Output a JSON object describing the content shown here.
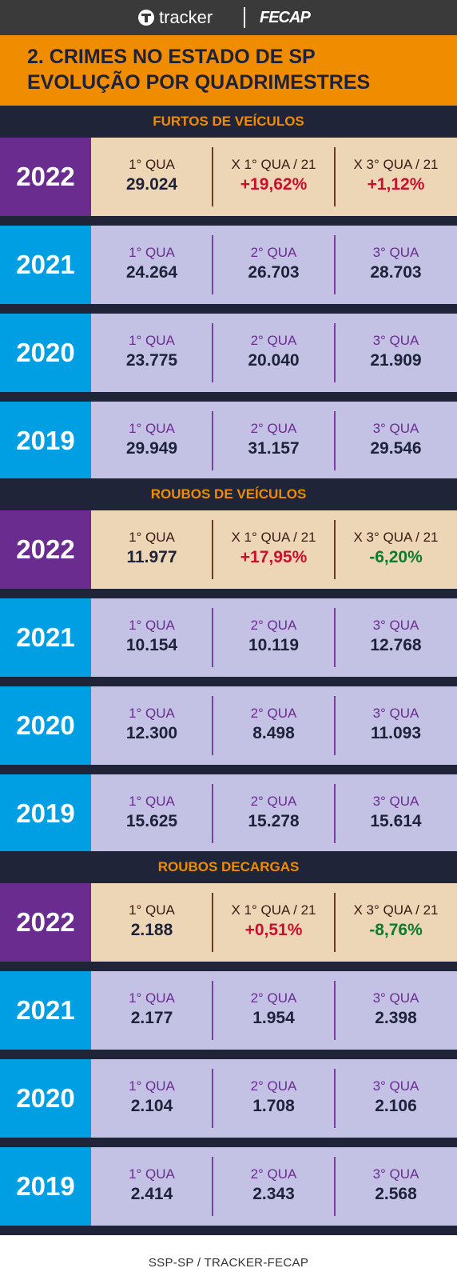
{
  "header": {
    "brand_tracker": "tracker",
    "brand_fecap": "FECAP",
    "title_line1": "2. CRIMES NO ESTADO DE SP",
    "title_line2": "EVOLUÇÃO POR QUADRIMESTRES"
  },
  "colors": {
    "orange": "#f08c00",
    "navy": "#1f2438",
    "purple": "#6a2c8f",
    "blue": "#009fe3",
    "beige": "#ecd6b6",
    "lavender": "#c3c2e5",
    "increase_red": "#c8102e",
    "decrease_green": "#0e7a2e"
  },
  "chart_data": {
    "type": "table",
    "sections": [
      {
        "title": "FURTOS DE VEÍCULOS",
        "rows": [
          {
            "year": "2022",
            "highlight": true,
            "cells": [
              {
                "label": "1° QUA",
                "value": "29.024"
              },
              {
                "label": "X 1° QUA / 21",
                "value": "+19,62%"
              },
              {
                "label": "X 3° QUA / 21",
                "value": "+1,12%"
              }
            ]
          },
          {
            "year": "2021",
            "cells": [
              {
                "label": "1° QUA",
                "value": "24.264"
              },
              {
                "label": "2° QUA",
                "value": "26.703"
              },
              {
                "label": "3° QUA",
                "value": "28.703"
              }
            ]
          },
          {
            "year": "2020",
            "cells": [
              {
                "label": "1° QUA",
                "value": "23.775"
              },
              {
                "label": "2° QUA",
                "value": "20.040"
              },
              {
                "label": "3° QUA",
                "value": "21.909"
              }
            ]
          },
          {
            "year": "2019",
            "cells": [
              {
                "label": "1° QUA",
                "value": "29.949"
              },
              {
                "label": "2° QUA",
                "value": "31.157"
              },
              {
                "label": "3° QUA",
                "value": "29.546"
              }
            ]
          }
        ]
      },
      {
        "title": "ROUBOS DE VEÍCULOS",
        "rows": [
          {
            "year": "2022",
            "highlight": true,
            "cells": [
              {
                "label": "1° QUA",
                "value": "11.977"
              },
              {
                "label": "X 1° QUA / 21",
                "value": "+17,95%"
              },
              {
                "label": "X 3° QUA / 21",
                "value": "-6,20%"
              }
            ]
          },
          {
            "year": "2021",
            "cells": [
              {
                "label": "1° QUA",
                "value": "10.154"
              },
              {
                "label": "2° QUA",
                "value": "10.119"
              },
              {
                "label": "3° QUA",
                "value": "12.768"
              }
            ]
          },
          {
            "year": "2020",
            "cells": [
              {
                "label": "1° QUA",
                "value": "12.300"
              },
              {
                "label": "2° QUA",
                "value": "8.498"
              },
              {
                "label": "3° QUA",
                "value": "11.093"
              }
            ]
          },
          {
            "year": "2019",
            "cells": [
              {
                "label": "1° QUA",
                "value": "15.625"
              },
              {
                "label": "2° QUA",
                "value": "15.278"
              },
              {
                "label": "3° QUA",
                "value": "15.614"
              }
            ]
          }
        ]
      },
      {
        "title": "ROUBOS DECARGAS",
        "rows": [
          {
            "year": "2022",
            "highlight": true,
            "cells": [
              {
                "label": "1° QUA",
                "value": "2.188"
              },
              {
                "label": "X 1° QUA / 21",
                "value": "+0,51%"
              },
              {
                "label": "X 3° QUA / 21",
                "value": "-8,76%"
              }
            ]
          },
          {
            "year": "2021",
            "cells": [
              {
                "label": "1° QUA",
                "value": "2.177"
              },
              {
                "label": "2° QUA",
                "value": "1.954"
              },
              {
                "label": "3° QUA",
                "value": "2.398"
              }
            ]
          },
          {
            "year": "2020",
            "cells": [
              {
                "label": "1° QUA",
                "value": "2.104"
              },
              {
                "label": "2° QUA",
                "value": "1.708"
              },
              {
                "label": "3° QUA",
                "value": "2.106"
              }
            ]
          },
          {
            "year": "2019",
            "cells": [
              {
                "label": "1° QUA",
                "value": "2.414"
              },
              {
                "label": "2° QUA",
                "value": "2.343"
              },
              {
                "label": "3° QUA",
                "value": "2.568"
              }
            ]
          }
        ]
      }
    ]
  },
  "footer": {
    "source": "SSP-SP / TRACKER-FECAP"
  }
}
